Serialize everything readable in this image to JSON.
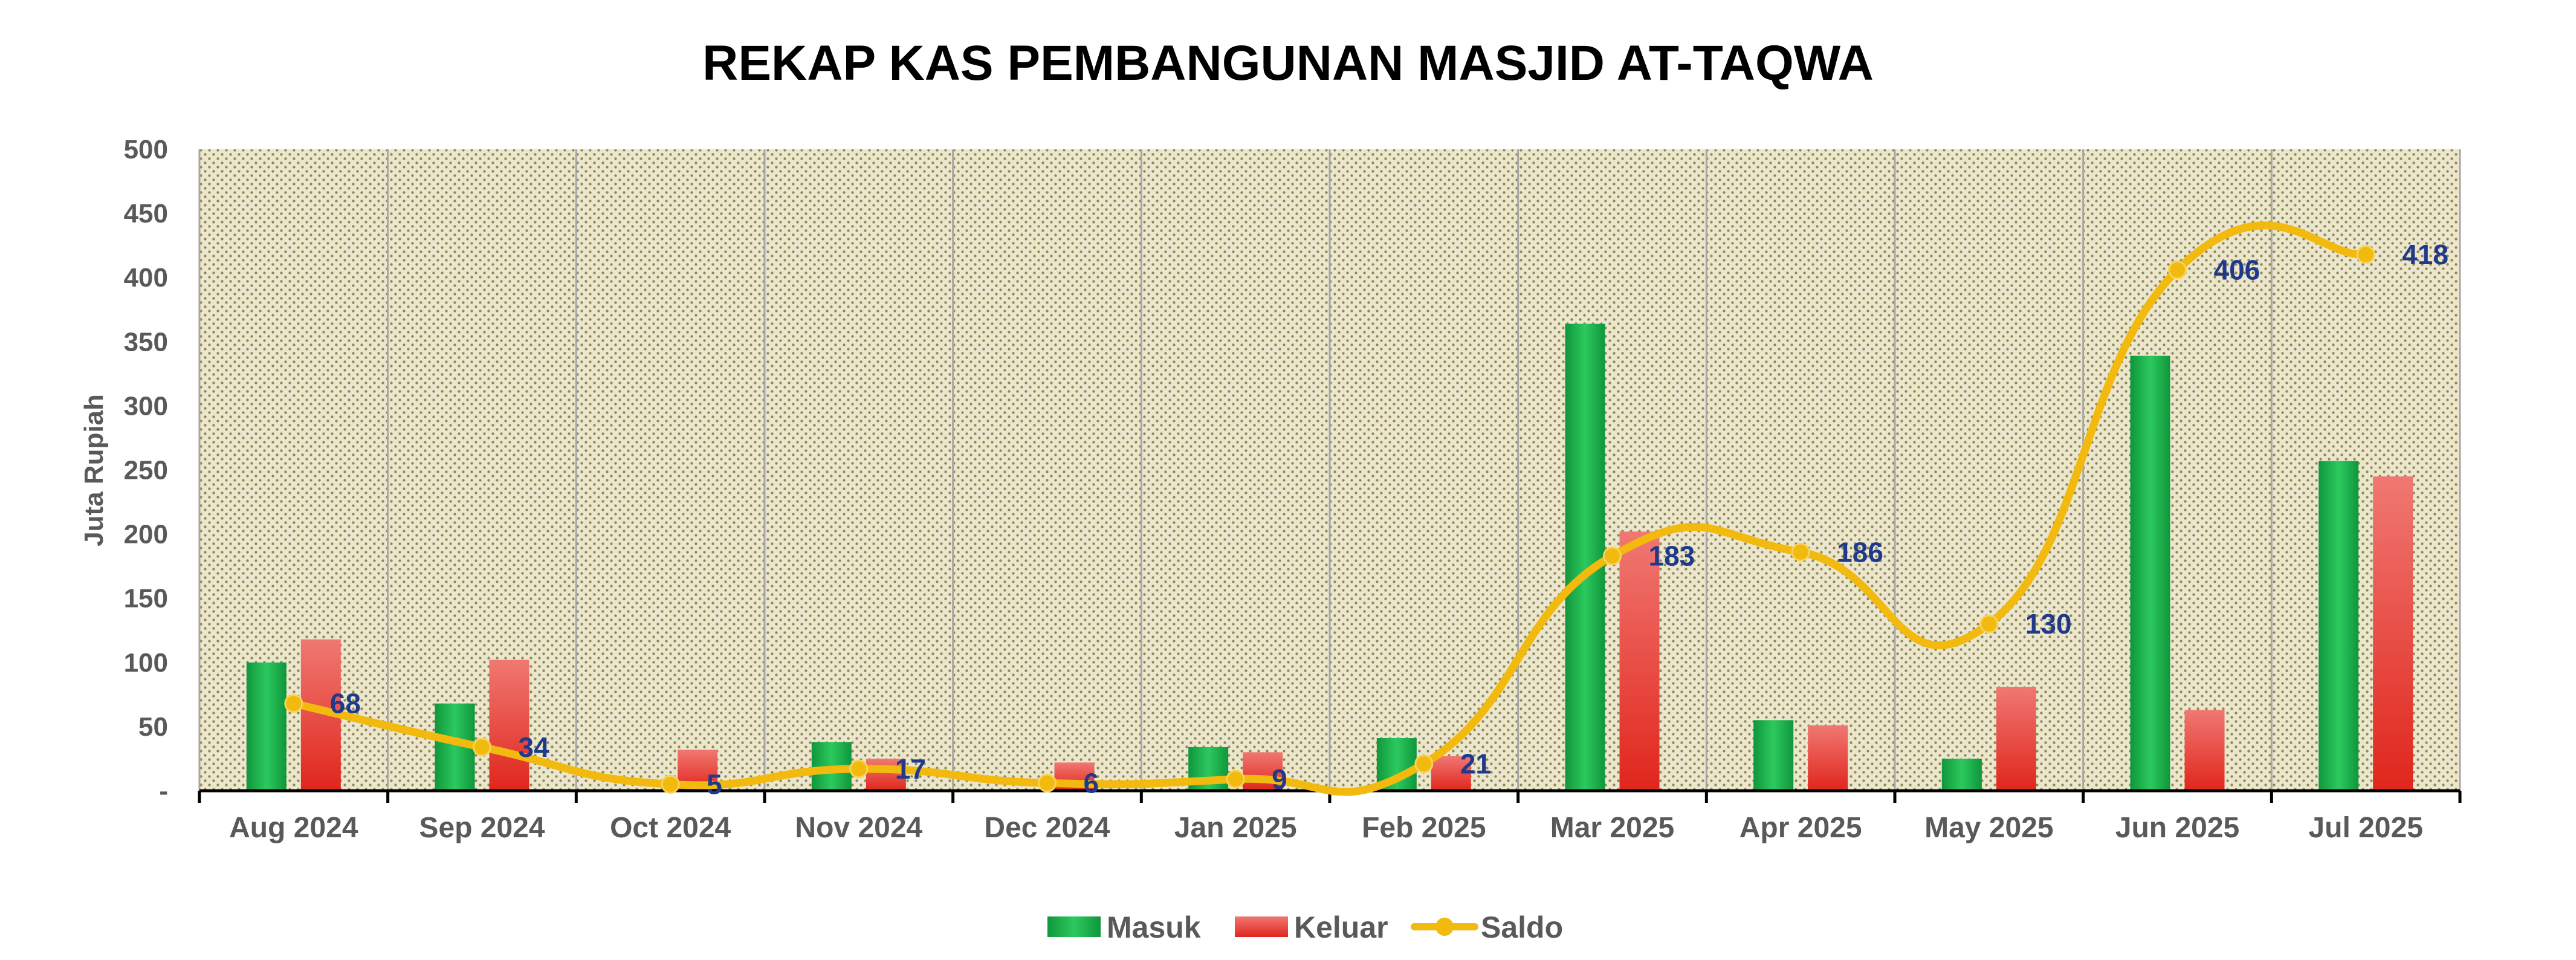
{
  "chart_data": {
    "type": "bar",
    "title": "REKAP KAS PEMBANGUNAN MASJID AT-TAQWA",
    "ylabel": "Juta Rupiah",
    "xlabel": "",
    "ylim": [
      0,
      500
    ],
    "yticks": [
      0,
      50,
      100,
      150,
      200,
      250,
      300,
      350,
      400,
      450,
      500
    ],
    "ytick_labels": [
      "-",
      "50",
      "100",
      "150",
      "200",
      "250",
      "300",
      "350",
      "400",
      "450",
      "500"
    ],
    "categories": [
      "Aug 2024",
      "Sep 2024",
      "Oct 2024",
      "Nov 2024",
      "Dec 2024",
      "Jan 2025",
      "Feb 2025",
      "Mar 2025",
      "Apr 2025",
      "May 2025",
      "Jun 2025",
      "Jul 2025"
    ],
    "series": [
      {
        "name": "Masuk",
        "type": "bar",
        "color": "#1aa84a",
        "values": [
          100,
          68,
          0,
          38,
          0,
          34,
          41,
          364,
          55,
          25,
          339,
          257
        ]
      },
      {
        "name": "Keluar",
        "type": "bar",
        "color": "#e8403a",
        "values": [
          118,
          102,
          32,
          25,
          22,
          30,
          27,
          202,
          51,
          81,
          63,
          245
        ]
      },
      {
        "name": "Saldo",
        "type": "line",
        "color": "#f2b90f",
        "values": [
          68,
          34,
          5,
          17,
          6,
          9,
          21,
          183,
          186,
          130,
          406,
          418
        ],
        "data_labels": [
          "68",
          "34",
          "5",
          "17",
          "6",
          "9",
          "21",
          "183",
          "186",
          "130",
          "406",
          "418"
        ]
      }
    ],
    "grid": true,
    "legend": "bottom"
  }
}
